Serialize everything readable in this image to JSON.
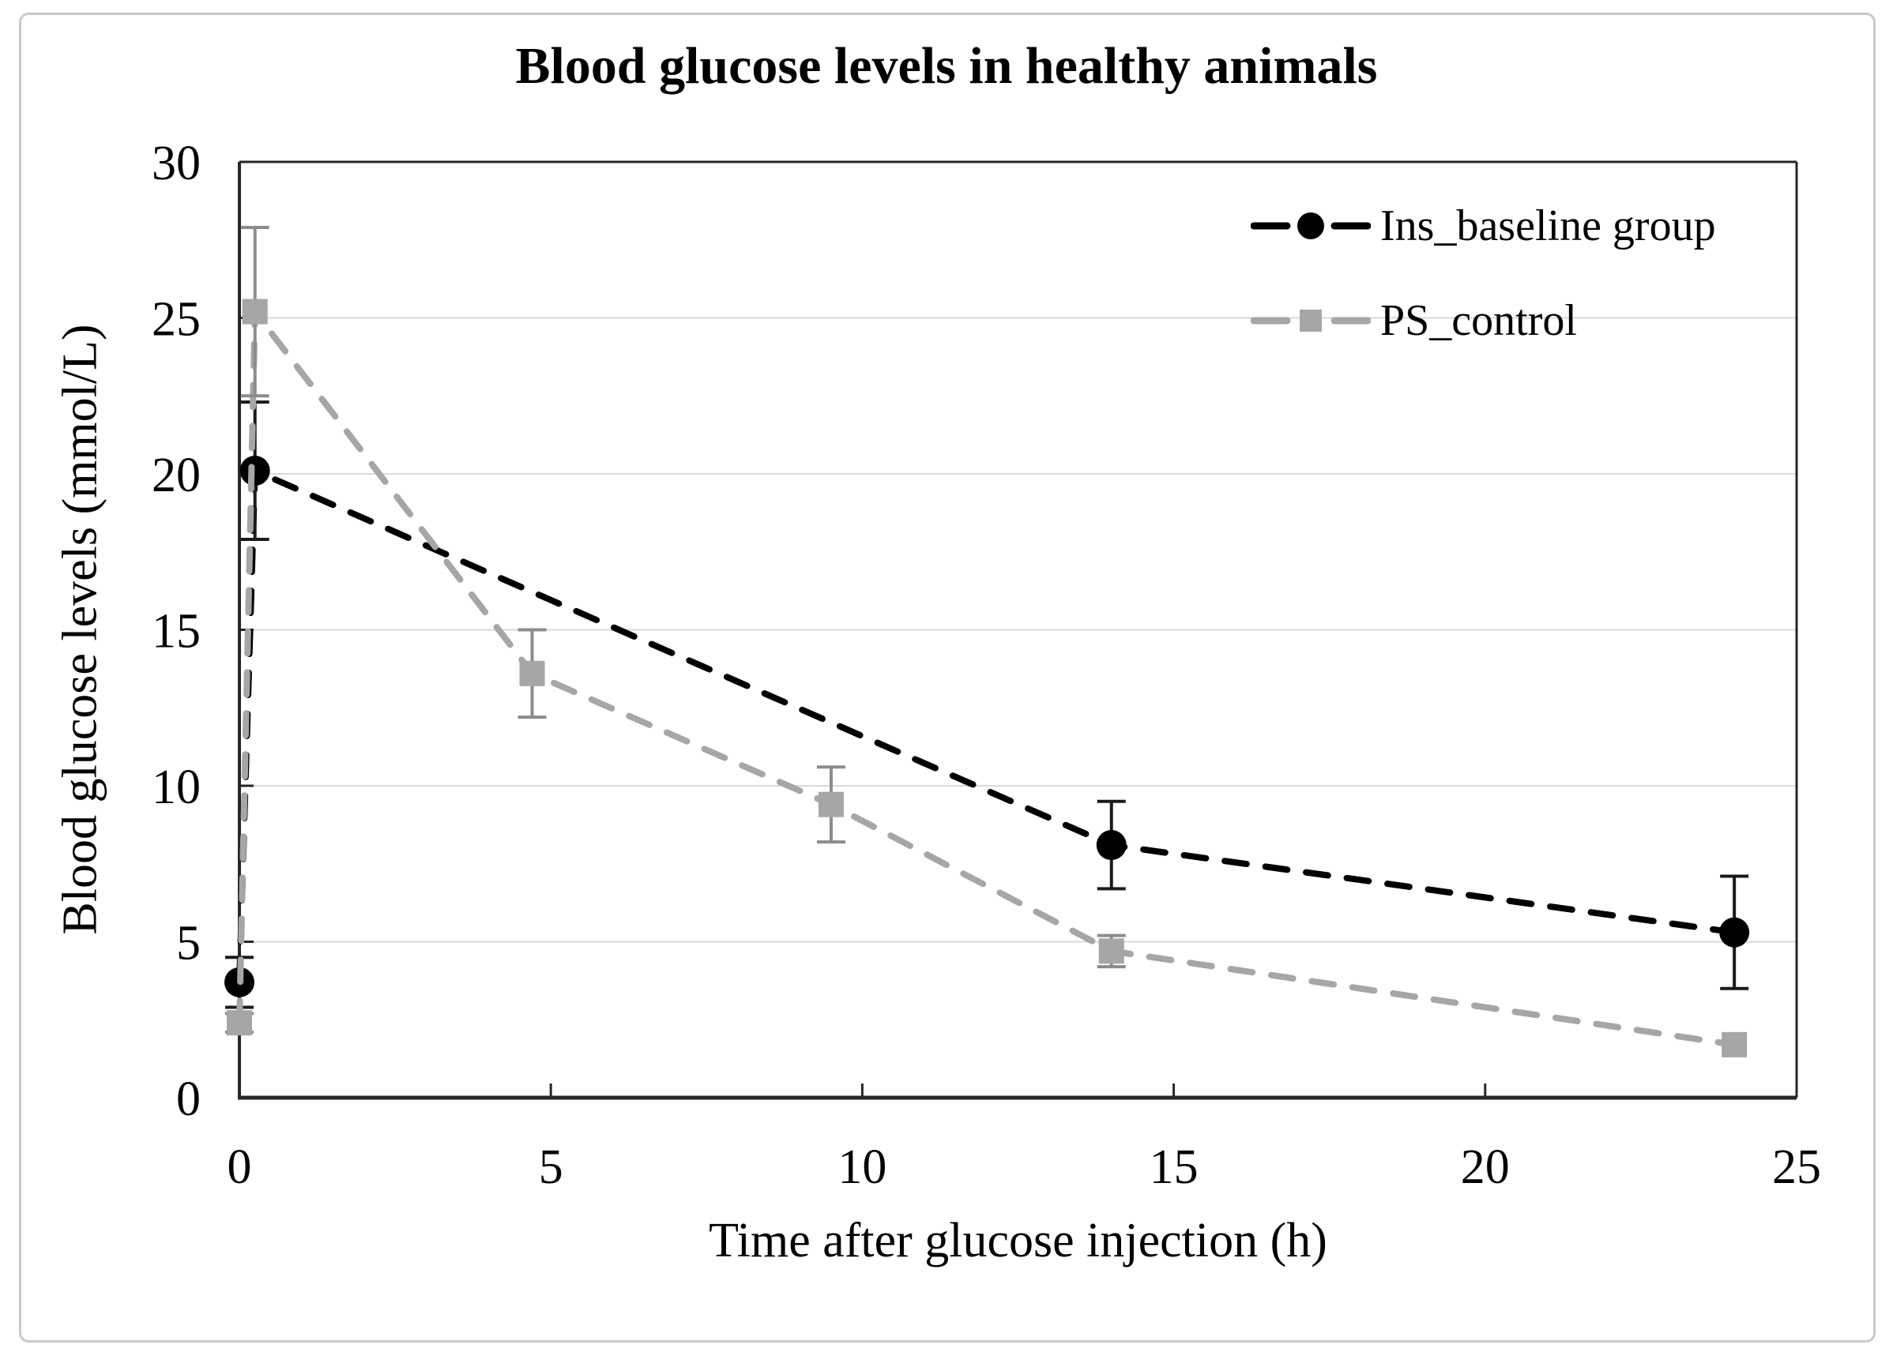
{
  "frame": {
    "border_color": "#c9c9c9",
    "background": "#ffffff"
  },
  "chart_data": {
    "type": "line",
    "title": "Blood glucose levels in healthy animals",
    "xlabel": "Time after glucose injection (h)",
    "ylabel": "Blood glucose levels (mmol/L)",
    "xlim": [
      0,
      25
    ],
    "ylim": [
      0,
      30
    ],
    "xticks": [
      0,
      5,
      10,
      15,
      20,
      25
    ],
    "yticks": [
      0,
      5,
      10,
      15,
      20,
      25,
      30
    ],
    "grid": "horizontal-only",
    "grid_color": "#d9d9d9",
    "axis_color": "#262626",
    "legend_position": "top-right-inside",
    "series": [
      {
        "name": "Ins_baseline group",
        "color": "#000000",
        "error_bar_color": "#1a1a1a",
        "marker": "circle",
        "line_style": "dashed",
        "points": [
          {
            "x": 0,
            "y": 3.7,
            "err": 0.8
          },
          {
            "x": 0.25,
            "y": 20.1,
            "err": 2.2
          },
          {
            "x": 14,
            "y": 8.1,
            "err": 1.4
          },
          {
            "x": 24,
            "y": 5.3,
            "err": 1.8
          }
        ]
      },
      {
        "name": "PS_control",
        "color": "#a6a6a6",
        "error_bar_color": "#8c8c8c",
        "marker": "square",
        "line_style": "dashed",
        "points": [
          {
            "x": 0,
            "y": 2.4,
            "err": 0.3
          },
          {
            "x": 0.25,
            "y": 25.2,
            "err": 2.7
          },
          {
            "x": 4.7,
            "y": 13.6,
            "err": 1.4
          },
          {
            "x": 9.5,
            "y": 9.4,
            "err": 1.2
          },
          {
            "x": 14,
            "y": 4.7,
            "err": 0.5
          },
          {
            "x": 24,
            "y": 1.7,
            "err": 0
          }
        ]
      }
    ]
  }
}
